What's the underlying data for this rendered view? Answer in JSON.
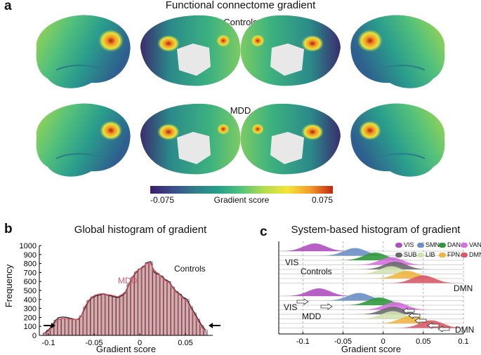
{
  "panel_a": {
    "letter": "a",
    "title": "Functional connectome gradient",
    "row1_label": "Controls",
    "row2_label": "MDD",
    "colorbar": {
      "min_label": "-0.075",
      "label": "Gradient score",
      "max_label": "0.075",
      "colors": [
        "#3b1d6b",
        "#3a4e8c",
        "#2f7f8a",
        "#25a08a",
        "#52c57a",
        "#b6dd4c",
        "#f3e53a",
        "#f59c28",
        "#c0280f"
      ]
    }
  },
  "panel_b": {
    "letter": "b",
    "title": "Global histogram of gradient",
    "xlabel": "Gradient score",
    "ylabel": "Frequency",
    "controls_label": "Controls",
    "mdd_label": "MDD",
    "xticks": [
      "-0.1",
      "-0.05",
      "0",
      "0.05"
    ],
    "yticks": [
      "0",
      "100",
      "200",
      "300",
      "400",
      "500",
      "600",
      "700",
      "800",
      "900",
      "1000"
    ]
  },
  "panel_c": {
    "letter": "c",
    "title": "System-based histogram of gradient",
    "xlabel": "Gradient score",
    "xticks": [
      "-0.1",
      "-0.05",
      "0",
      "0.05",
      "0.1"
    ],
    "labels": {
      "vis_top": "VIS",
      "controls": "Controls",
      "dmn_top": "DMN",
      "vis_bottom": "VIS",
      "mdd": "MDD",
      "dmn_bottom": "DMN"
    },
    "legend": [
      {
        "name": "VIS",
        "color": "#b04fc0"
      },
      {
        "name": "SMN",
        "color": "#6d8fc7"
      },
      {
        "name": "DAN",
        "color": "#2f9a3b"
      },
      {
        "name": "VAN",
        "color": "#d86fe0"
      },
      {
        "name": "SUB",
        "color": "#6b6b6b"
      },
      {
        "name": "LIB",
        "color": "#d2e3b3"
      },
      {
        "name": "FPN",
        "color": "#f0b540"
      },
      {
        "name": "DMN",
        "color": "#d85a6a"
      }
    ]
  },
  "chart_data": [
    {
      "type": "bar",
      "title": "Global histogram of gradient",
      "xlabel": "Gradient score",
      "ylabel": "Frequency",
      "xlim": [
        -0.11,
        0.08
      ],
      "ylim": [
        0,
        1000
      ],
      "series": [
        {
          "name": "Controls",
          "x": [
            -0.104,
            -0.1,
            -0.096,
            -0.092,
            -0.088,
            -0.084,
            -0.08,
            -0.076,
            -0.072,
            -0.068,
            -0.064,
            -0.06,
            -0.056,
            -0.052,
            -0.048,
            -0.044,
            -0.04,
            -0.036,
            -0.032,
            -0.028,
            -0.024,
            -0.02,
            -0.016,
            -0.012,
            -0.008,
            -0.004,
            0.0,
            0.004,
            0.008,
            0.012,
            0.016,
            0.02,
            0.024,
            0.028,
            0.032,
            0.036,
            0.04,
            0.044,
            0.048,
            0.052,
            0.056,
            0.06,
            0.064,
            0.068,
            0.072
          ],
          "values": [
            30,
            60,
            110,
            170,
            200,
            205,
            200,
            190,
            180,
            175,
            215,
            300,
            380,
            420,
            440,
            450,
            460,
            450,
            440,
            430,
            420,
            440,
            470,
            560,
            640,
            700,
            740,
            760,
            810,
            820,
            700,
            680,
            660,
            620,
            600,
            540,
            490,
            460,
            420,
            400,
            320,
            250,
            180,
            110,
            60
          ]
        },
        {
          "name": "MDD",
          "x": [
            -0.104,
            -0.1,
            -0.096,
            -0.092,
            -0.088,
            -0.084,
            -0.08,
            -0.076,
            -0.072,
            -0.068,
            -0.064,
            -0.06,
            -0.056,
            -0.052,
            -0.048,
            -0.044,
            -0.04,
            -0.036,
            -0.032,
            -0.028,
            -0.024,
            -0.02,
            -0.016,
            -0.012,
            -0.008,
            -0.004,
            0.0,
            0.004,
            0.008,
            0.012,
            0.016,
            0.02,
            0.024,
            0.028,
            0.032,
            0.036,
            0.04,
            0.044,
            0.048,
            0.052,
            0.056,
            0.06,
            0.064,
            0.068,
            0.072
          ],
          "values": [
            20,
            45,
            90,
            150,
            180,
            190,
            185,
            180,
            175,
            180,
            220,
            320,
            390,
            430,
            450,
            460,
            465,
            455,
            450,
            440,
            430,
            450,
            480,
            570,
            650,
            710,
            740,
            770,
            800,
            800,
            720,
            690,
            650,
            610,
            590,
            530,
            480,
            450,
            410,
            380,
            300,
            230,
            160,
            90,
            40
          ]
        }
      ]
    },
    {
      "type": "area",
      "title": "System-based histogram of gradient",
      "xlabel": "Gradient score",
      "xlim": [
        -0.13,
        0.1
      ],
      "groups": [
        {
          "name": "Controls",
          "series": [
            {
              "name": "VIS",
              "peak": -0.085
            },
            {
              "name": "SMN",
              "peak": -0.035
            },
            {
              "name": "DAN",
              "peak": -0.01
            },
            {
              "name": "VAN",
              "peak": 0.01
            },
            {
              "name": "SUB",
              "peak": 0.015
            },
            {
              "name": "LIB",
              "peak": 0.01
            },
            {
              "name": "FPN",
              "peak": 0.03
            },
            {
              "name": "DMN",
              "peak": 0.05
            }
          ]
        },
        {
          "name": "MDD",
          "series": [
            {
              "name": "VIS",
              "peak": -0.08
            },
            {
              "name": "SMN",
              "peak": -0.03
            },
            {
              "name": "DAN",
              "peak": -0.005
            },
            {
              "name": "VAN",
              "peak": 0.015
            },
            {
              "name": "SUB",
              "peak": 0.012
            },
            {
              "name": "LIB",
              "peak": 0.012
            },
            {
              "name": "FPN",
              "peak": 0.035
            },
            {
              "name": "DMN",
              "peak": 0.06
            }
          ]
        }
      ]
    }
  ]
}
